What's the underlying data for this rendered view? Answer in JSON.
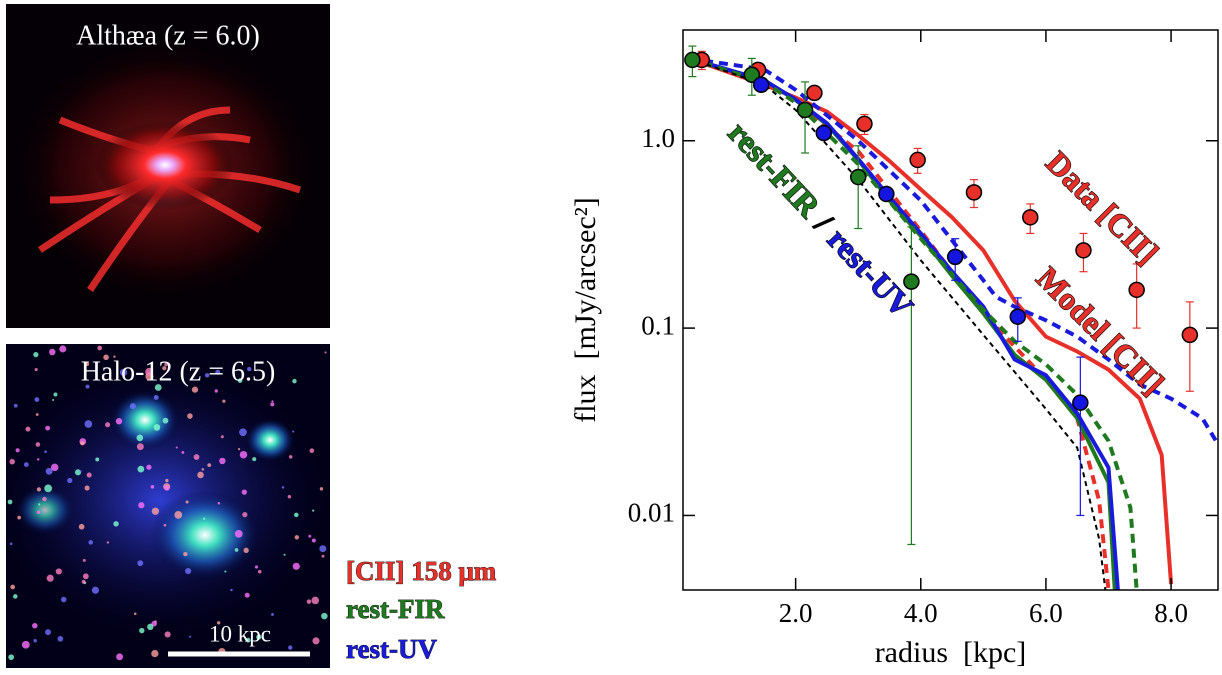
{
  "panels": [
    {
      "label": "Althæa (z = 6.0)"
    },
    {
      "label": "Halo-12 (z = 6.5)",
      "scale_bar": "10 kpc"
    }
  ],
  "image_legend": [
    {
      "text": "[CII]  158 μm",
      "color": "#e8302a"
    },
    {
      "text": "rest-FIR",
      "color": "#1f7a1f"
    },
    {
      "text": "rest-UV",
      "color": "#1a1adc"
    }
  ],
  "chart_data": {
    "type": "line",
    "x_label": "radius  [kpc]",
    "y_label": "flux  [mJy/arcsec²]",
    "log_y": true,
    "xlim": [
      0.2,
      8.75
    ],
    "ylim": [
      0.004,
      3.9
    ],
    "xticks": [
      {
        "value": 2,
        "label": "2.0"
      },
      {
        "value": 4,
        "label": "4.0"
      },
      {
        "value": 6,
        "label": "6.0"
      },
      {
        "value": 8,
        "label": "8.0"
      }
    ],
    "yticks": [
      {
        "value": 1,
        "label": "1.0"
      },
      0.1,
      0.01
    ],
    "annotations": [
      {
        "text": "Data [CII]",
        "color": "#e8302a"
      },
      {
        "text": "Model [CII]",
        "color": "#e8302a"
      },
      {
        "text": "rest-FIR",
        "color": "#1f7a1f"
      },
      {
        "text": "/",
        "color": "#000000"
      },
      {
        "text": "rest-UV",
        "color": "#1a1adc"
      }
    ],
    "series": [
      {
        "style": "solid",
        "color": "#e8302a",
        "x": [
          0.3,
          1.5,
          2.0,
          2.5,
          3.0,
          3.5,
          4.0,
          4.5,
          5.0,
          5.5,
          6.0,
          6.5,
          7.0,
          7.5,
          7.85,
          8.0
        ],
        "values": [
          2.75,
          1.99,
          1.7,
          1.43,
          1.07,
          0.78,
          0.55,
          0.39,
          0.26,
          0.14,
          0.09,
          0.075,
          0.06,
          0.042,
          0.021,
          0.0043
        ]
      },
      {
        "style": "dashed",
        "color": "#e8302a",
        "x": [
          0.3,
          1.5,
          2.0,
          3.0,
          4.0,
          5.0,
          6.0,
          6.5,
          6.85,
          7.0
        ],
        "values": [
          2.75,
          2.05,
          1.6,
          0.88,
          0.33,
          0.12,
          0.053,
          0.033,
          0.012,
          0.004
        ]
      },
      {
        "style": "dashed",
        "color": "#1a1adc",
        "x": [
          0.3,
          1.5,
          2.0,
          3.0,
          4.0,
          5.0,
          5.2,
          5.5,
          6.0,
          6.5,
          7.0,
          7.5,
          8.0,
          8.5,
          8.75
        ],
        "values": [
          2.75,
          2.4,
          1.87,
          1.0,
          0.48,
          0.18,
          0.147,
          0.13,
          0.11,
          0.09,
          0.068,
          0.05,
          0.042,
          0.033,
          0.024
        ]
      },
      {
        "style": "solid",
        "color": "#1f7a1f",
        "x": [
          0.3,
          1.5,
          2.0,
          2.5,
          3.0,
          3.5,
          4.0,
          4.5,
          5.0,
          5.5,
          6.0,
          6.5,
          7.0,
          7.1
        ],
        "values": [
          2.75,
          2.1,
          1.65,
          1.22,
          0.79,
          0.48,
          0.31,
          0.19,
          0.12,
          0.072,
          0.053,
          0.033,
          0.015,
          0.004
        ]
      },
      {
        "style": "solid",
        "color": "#1a1adc",
        "x": [
          0.3,
          1.5,
          2.0,
          2.5,
          3.0,
          3.5,
          4.0,
          4.5,
          5.0,
          5.5,
          6.0,
          6.5,
          7.0,
          7.15
        ],
        "values": [
          2.75,
          2.1,
          1.66,
          1.24,
          0.8,
          0.5,
          0.32,
          0.2,
          0.13,
          0.068,
          0.056,
          0.035,
          0.018,
          0.004
        ]
      },
      {
        "style": "dashed",
        "color": "#1f7a1f",
        "x": [
          0.3,
          1.5,
          2.0,
          3.0,
          4.0,
          5.0,
          5.5,
          6.0,
          6.5,
          7.0,
          7.35,
          7.45
        ],
        "values": [
          2.75,
          2.05,
          1.6,
          0.75,
          0.3,
          0.125,
          0.085,
          0.064,
          0.044,
          0.025,
          0.011,
          0.004
        ]
      },
      {
        "style": "dashed",
        "color": "#000000",
        "x": [
          0.3,
          1.5,
          2.0,
          3.0,
          4.0,
          5.0,
          6.0,
          6.5,
          6.85,
          6.95
        ],
        "values": [
          2.75,
          1.99,
          1.46,
          0.62,
          0.23,
          0.092,
          0.037,
          0.023,
          0.0075,
          0.004
        ]
      },
      {
        "style": "points",
        "color": "#e8302a",
        "x": [
          0.5,
          1.4,
          2.3,
          3.1,
          3.95,
          4.85,
          5.75,
          6.6,
          7.45,
          8.3
        ],
        "values": [
          2.7,
          2.39,
          1.8,
          1.23,
          0.79,
          0.53,
          0.39,
          0.26,
          0.16,
          0.092
        ],
        "errors": [
          0.3,
          0.2,
          0.15,
          0.15,
          0.12,
          0.09,
          0.07,
          0.06,
          0.06,
          0.046
        ]
      },
      {
        "style": "points",
        "color": "#1f7a1f",
        "x": [
          0.35,
          1.3,
          2.15,
          3.0,
          3.85
        ],
        "values": [
          2.7,
          2.25,
          1.46,
          0.64,
          0.177
        ],
        "errors": [
          0.5,
          0.5,
          0.6,
          0.3,
          0.17
        ]
      },
      {
        "style": "points",
        "color": "#1515e0",
        "x": [
          1.45,
          2.45,
          3.45,
          4.55,
          5.55,
          6.55
        ],
        "values": [
          1.99,
          1.1,
          0.52,
          0.24,
          0.115,
          0.04
        ],
        "errors": [
          0.1,
          0.05,
          0.04,
          0.06,
          0.03,
          0.03
        ]
      }
    ]
  }
}
